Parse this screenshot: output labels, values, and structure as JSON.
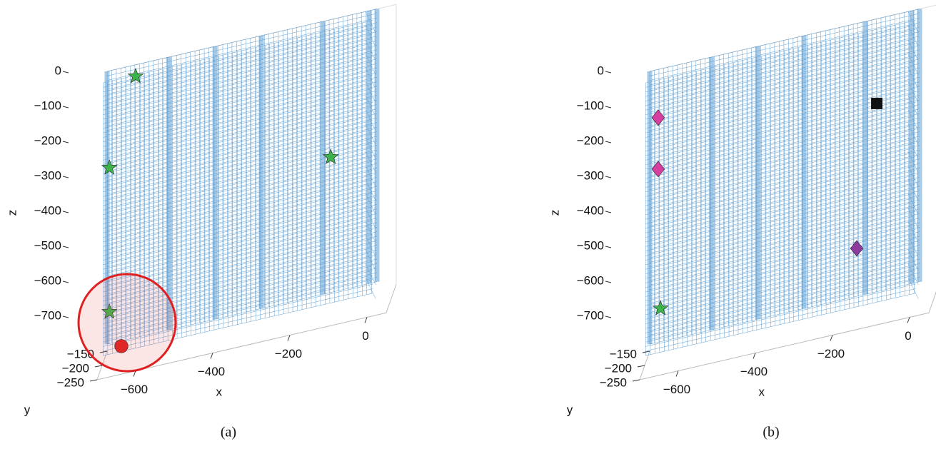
{
  "chart_data": [
    {
      "type": "scatter3d",
      "caption": "(a)",
      "x_label": "x",
      "y_label": "y",
      "z_label": "z",
      "xlim": [
        -700,
        50
      ],
      "ylim": [
        -250,
        -150
      ],
      "zlim": [
        -800,
        0
      ],
      "xticks": [
        {
          "value": -600,
          "label": "−600"
        },
        {
          "value": -400,
          "label": "−400"
        },
        {
          "value": -200,
          "label": "−200"
        },
        0
      ],
      "yticks": [
        {
          "value": -150,
          "label": "−150"
        },
        {
          "value": -200,
          "label": "−200"
        },
        {
          "value": -250,
          "label": "−250"
        }
      ],
      "zticks": [
        0,
        {
          "value": -100,
          "label": "−100"
        },
        {
          "value": -200,
          "label": "−200"
        },
        {
          "value": -300,
          "label": "−300"
        },
        {
          "value": -400,
          "label": "−400"
        },
        {
          "value": -500,
          "label": "−500"
        },
        {
          "value": -600,
          "label": "−600"
        },
        {
          "value": -700,
          "label": "−700"
        }
      ],
      "series": [
        {
          "color": "#3cb44b",
          "marker": "star",
          "x": [
            -626,
            -694,
            -120,
            -694
          ],
          "y": [
            -150,
            -150,
            -150,
            -150
          ],
          "z": [
            -33,
            -277,
            -393,
            -689
          ]
        },
        {
          "color": "#e02020",
          "marker": "circle",
          "x": [
            -663
          ],
          "y": [
            -150
          ],
          "z": [
            -795
          ]
        }
      ]
    },
    {
      "type": "scatter3d",
      "caption": "(b)",
      "x_label": "x",
      "y_label": "y",
      "z_label": "z",
      "xlim": [
        -700,
        50
      ],
      "ylim": [
        -250,
        -150
      ],
      "zlim": [
        -800,
        0
      ],
      "xticks": [
        {
          "value": -600,
          "label": "−600"
        },
        {
          "value": -400,
          "label": "−400"
        },
        {
          "value": -200,
          "label": "−200"
        },
        0
      ],
      "yticks": [
        {
          "value": -150,
          "label": "−150"
        },
        {
          "value": -200,
          "label": "−200"
        },
        {
          "value": -250,
          "label": "−250"
        }
      ],
      "zticks": [
        0,
        {
          "value": -100,
          "label": "−100"
        },
        {
          "value": -200,
          "label": "−200"
        },
        {
          "value": -300,
          "label": "−300"
        },
        {
          "value": -400,
          "label": "−400"
        },
        {
          "value": -500,
          "label": "−500"
        },
        {
          "value": -600,
          "label": "−600"
        },
        {
          "value": -700,
          "label": "−700"
        }
      ],
      "series": [
        {
          "color": "#d63fa0",
          "marker": "diamond",
          "x": [
            -678,
            -678
          ],
          "y": [
            -150,
            -150
          ],
          "z": [
            -138,
            -285
          ]
        },
        {
          "color": "#8e3aa0",
          "marker": "diamond",
          "x": [
            -163
          ],
          "y": [
            -150
          ],
          "z": [
            -643
          ]
        },
        {
          "color": "#111111",
          "marker": "square",
          "x": [
            -111
          ],
          "y": [
            -150
          ],
          "z": [
            -242
          ]
        },
        {
          "color": "#3cb44b",
          "marker": "star",
          "x": [
            -672
          ],
          "y": [
            -150
          ],
          "z": [
            -685
          ]
        }
      ]
    }
  ]
}
